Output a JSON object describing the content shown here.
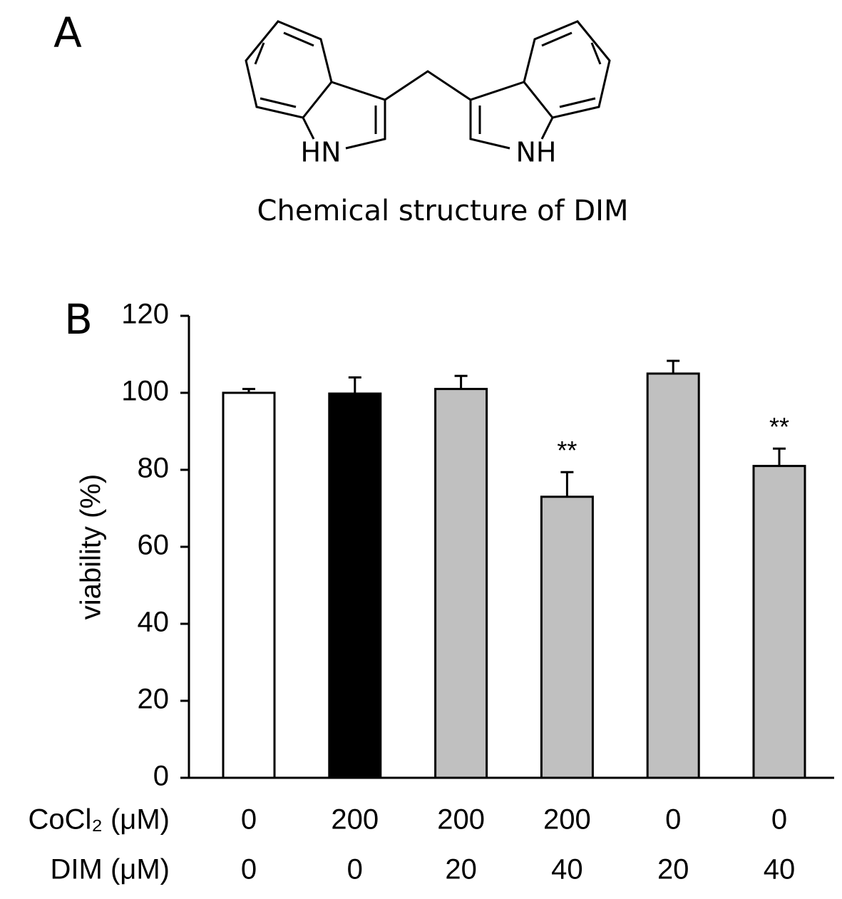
{
  "panel_labels": [
    "A",
    "B"
  ],
  "structure": {
    "atom_labels": [
      "HN",
      "NH"
    ],
    "caption": "Chemical structure of DIM"
  },
  "chart_data": {
    "type": "bar",
    "y_label": "viability (%)",
    "categories": [
      null,
      null,
      null,
      null,
      null,
      null
    ],
    "values": [
      100,
      99.8,
      101,
      73,
      105,
      81
    ],
    "errors": [
      1,
      4.2,
      3.4,
      6.4,
      3.3,
      4.5
    ],
    "colors": [
      "#ffffff",
      "#000000",
      "#c0c0c0",
      "#c0c0c0",
      "#c0c0c0",
      "#c0c0c0"
    ],
    "annotations": [
      null,
      null,
      null,
      "**",
      null,
      "**"
    ],
    "x_rows": [
      {
        "label": "CoCl₂ (μM)",
        "values": [
          "0",
          "200",
          "200",
          "200",
          "0",
          "0"
        ]
      },
      {
        "label": "DIM (μM)",
        "values": [
          "0",
          "0",
          "20",
          "40",
          "20",
          "40"
        ]
      }
    ],
    "ylim": [
      0,
      120
    ],
    "yticks": [
      0,
      20,
      40,
      60,
      80,
      100,
      120
    ],
    "grid": false
  }
}
